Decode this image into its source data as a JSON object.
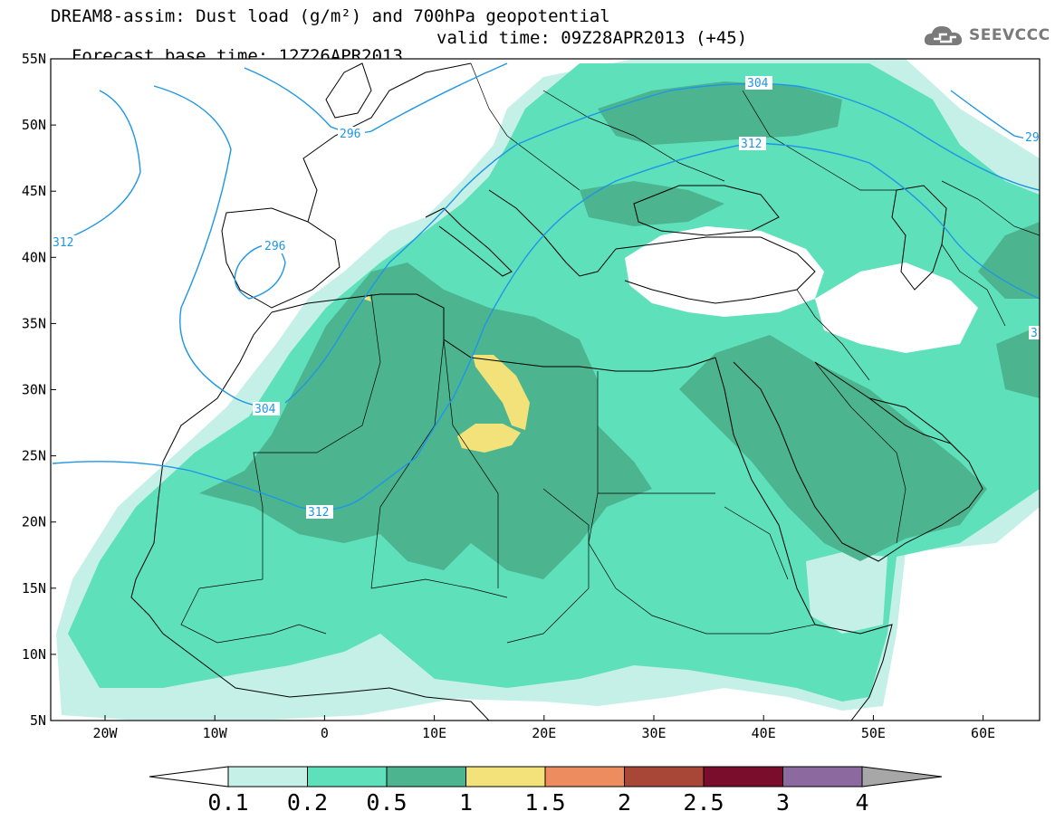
{
  "title_line1": "DREAM8-assim: Dust load (g/m²) and 700hPa geopotential",
  "title_line2": "Forecast base time: 12Z26APR2013",
  "valid_time": "valid time: 09Z28APR2013 (+45)",
  "logo": {
    "text": "SEEVCCC",
    "icon": "cloud-logo-icon"
  },
  "map": {
    "lat_labels": [
      "55N",
      "50N",
      "45N",
      "40N",
      "35N",
      "30N",
      "25N",
      "20N",
      "15N",
      "10N",
      "5N"
    ],
    "lon_labels": [
      "20W",
      "10W",
      "0",
      "10E",
      "20E",
      "30E",
      "40E",
      "50E",
      "60E"
    ],
    "contour_labels": [
      "296",
      "304",
      "312",
      "296",
      "312",
      "304",
      "312",
      "29",
      "3"
    ],
    "colors": {
      "c01": "#c4f0e7",
      "c02": "#5ee0bb",
      "c05": "#4cb48f",
      "c1": "#f3e27a",
      "isoline": "#1e96e6"
    }
  },
  "colorbar": {
    "labels": [
      "0.1",
      "0.2",
      "0.5",
      "1",
      "1.5",
      "2",
      "2.5",
      "3",
      "4"
    ],
    "colors": [
      "#c4f0e7",
      "#5ee0bb",
      "#4cb48f",
      "#f3e27a",
      "#ec8c5f",
      "#a84638",
      "#7a0d2b",
      "#8c6aa0"
    ],
    "end_left": "#ffffff",
    "end_right": "#a7a7a7"
  }
}
